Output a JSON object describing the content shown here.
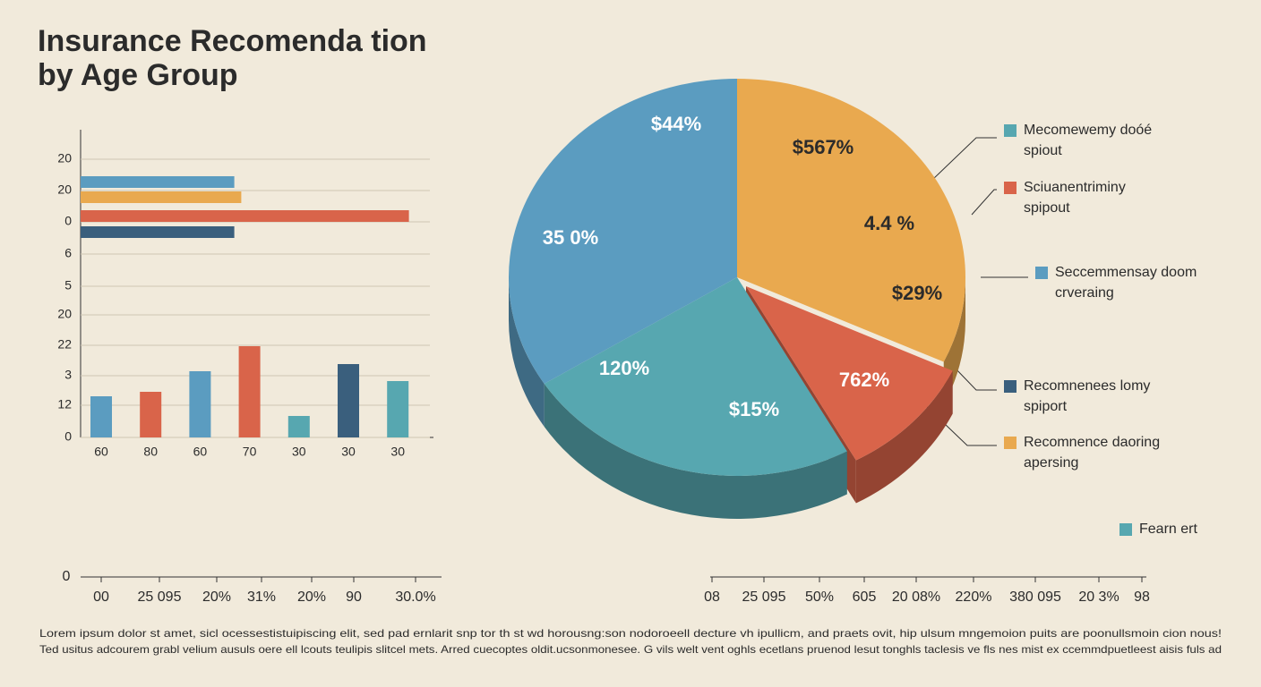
{
  "title": [
    "Insurance Recomenda tion",
    "by Age Group"
  ],
  "bar_panel": {
    "y_labels": [
      "20",
      "20",
      "0",
      "6",
      "5",
      "20",
      "22",
      "3",
      "12",
      "0"
    ],
    "hbars": [
      {
        "color": "#5b9cc0",
        "value": 44
      },
      {
        "color": "#e9a94f",
        "value": 46
      },
      {
        "color": "#d9644a",
        "value": 94
      },
      {
        "color": "#3a5f7d",
        "value": 44
      }
    ],
    "vbars": [
      {
        "label": "60",
        "color": "#5b9cc0",
        "value": 46
      },
      {
        "label": "80",
        "color": "#d9644a",
        "value": 51
      },
      {
        "label": "60",
        "color": "#5b9cc0",
        "value": 74
      },
      {
        "label": "70",
        "color": "#d9644a",
        "value": 102
      },
      {
        "label": "30",
        "color": "#57a7b0",
        "value": 24
      },
      {
        "label": "30",
        "color": "#3a5f7d",
        "value": 82
      },
      {
        "label": "30",
        "color": "#57a7b0",
        "value": 63
      }
    ]
  },
  "pie": {
    "slices": [
      {
        "color": "#e9a94f",
        "value": 32
      },
      {
        "color": "#d9644a",
        "value": 10
      },
      {
        "color": "#57a7b0",
        "value": 24
      },
      {
        "color": "#5b9cc0",
        "value": 34
      }
    ],
    "labels": [
      "$44%",
      "35 0%",
      "120%",
      "$15%",
      "$567%",
      "4.4 %",
      "$29%",
      "762%"
    ]
  },
  "legend": [
    {
      "color": "#57a7b0",
      "lines": [
        "Mecomewemy doóé",
        "spiout"
      ]
    },
    {
      "color": "#d9644a",
      "lines": [
        "Sciuanentriminy",
        "spipout"
      ]
    },
    {
      "color": "#5b9cc0",
      "lines": [
        "Seccemmensay doom",
        "crveraing"
      ]
    },
    {
      "color": "#3a5f7d",
      "lines": [
        "Recomnenees lomy",
        "spiport"
      ]
    },
    {
      "color": "#e9a94f",
      "lines": [
        "Recomnence daoring",
        "apersing"
      ]
    },
    {
      "color": "#57a7b0",
      "lines": [
        "Fearn ert"
      ]
    }
  ],
  "bottom_left_axis": {
    "zero": "0",
    "labels": [
      "00",
      "25 095",
      "20%",
      "31%",
      "20%",
      "90",
      "30.0%"
    ]
  },
  "bottom_right_axis": {
    "labels": [
      "08",
      "25 095",
      "50%",
      "605",
      "20 08%",
      "220%",
      "380 095",
      "20 3%",
      "98"
    ]
  },
  "footer": [
    "Lorem ipsum dolor st amet, sicl ocessestistuipiscing elit, sed pad ernlarit snp tor th st wd horousng:son nodoroeell decture vh ipullicm, and praets ovit, hip ulsum mngemoion puits are poonullsmoin cion nous!",
    "Ted usitus adcourem grabl velium ausuls oere ell lcouts teulipis slitcel mets. Arred cuecoptes oldit.ucsonmonesee. G vils welt vent oghls ecetlans pruenod lesut tonghls taclesis ve fls nes mist ex ccemmdpuetleest aisis fuls ad"
  ]
}
